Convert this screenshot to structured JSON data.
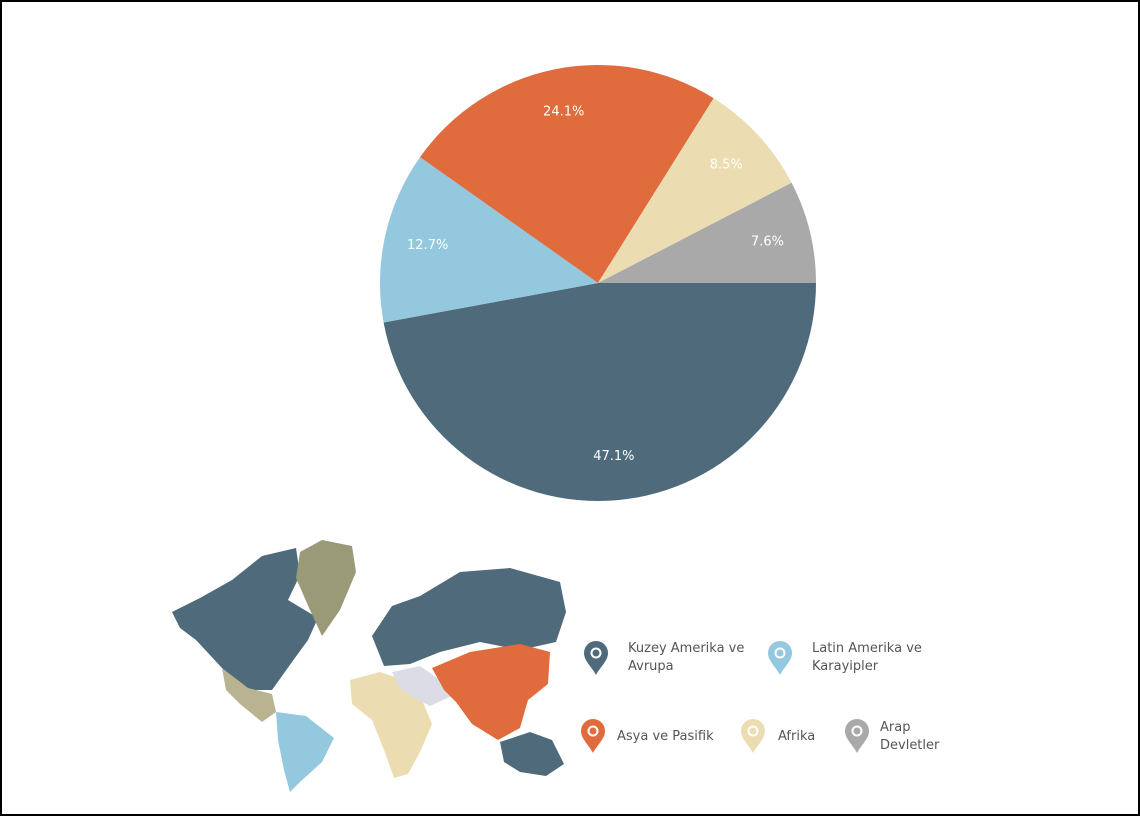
{
  "chart_data": {
    "type": "pie",
    "categories": [
      "Kuzey Amerika ve Avrupa",
      "Latin Amerika ve Karayipler",
      "Asya ve Pasifik",
      "Afrika",
      "Arap Devletler"
    ],
    "values": [
      47.1,
      12.7,
      24.1,
      8.5,
      7.6
    ],
    "value_labels": [
      "47.1%",
      "12.7%",
      "24.1%",
      "8.5%",
      "7.6%"
    ],
    "colors": [
      "#4f6a7a",
      "#93c8de",
      "#e06b3c",
      "#ecdcb1",
      "#a9a9a9"
    ]
  }
}
